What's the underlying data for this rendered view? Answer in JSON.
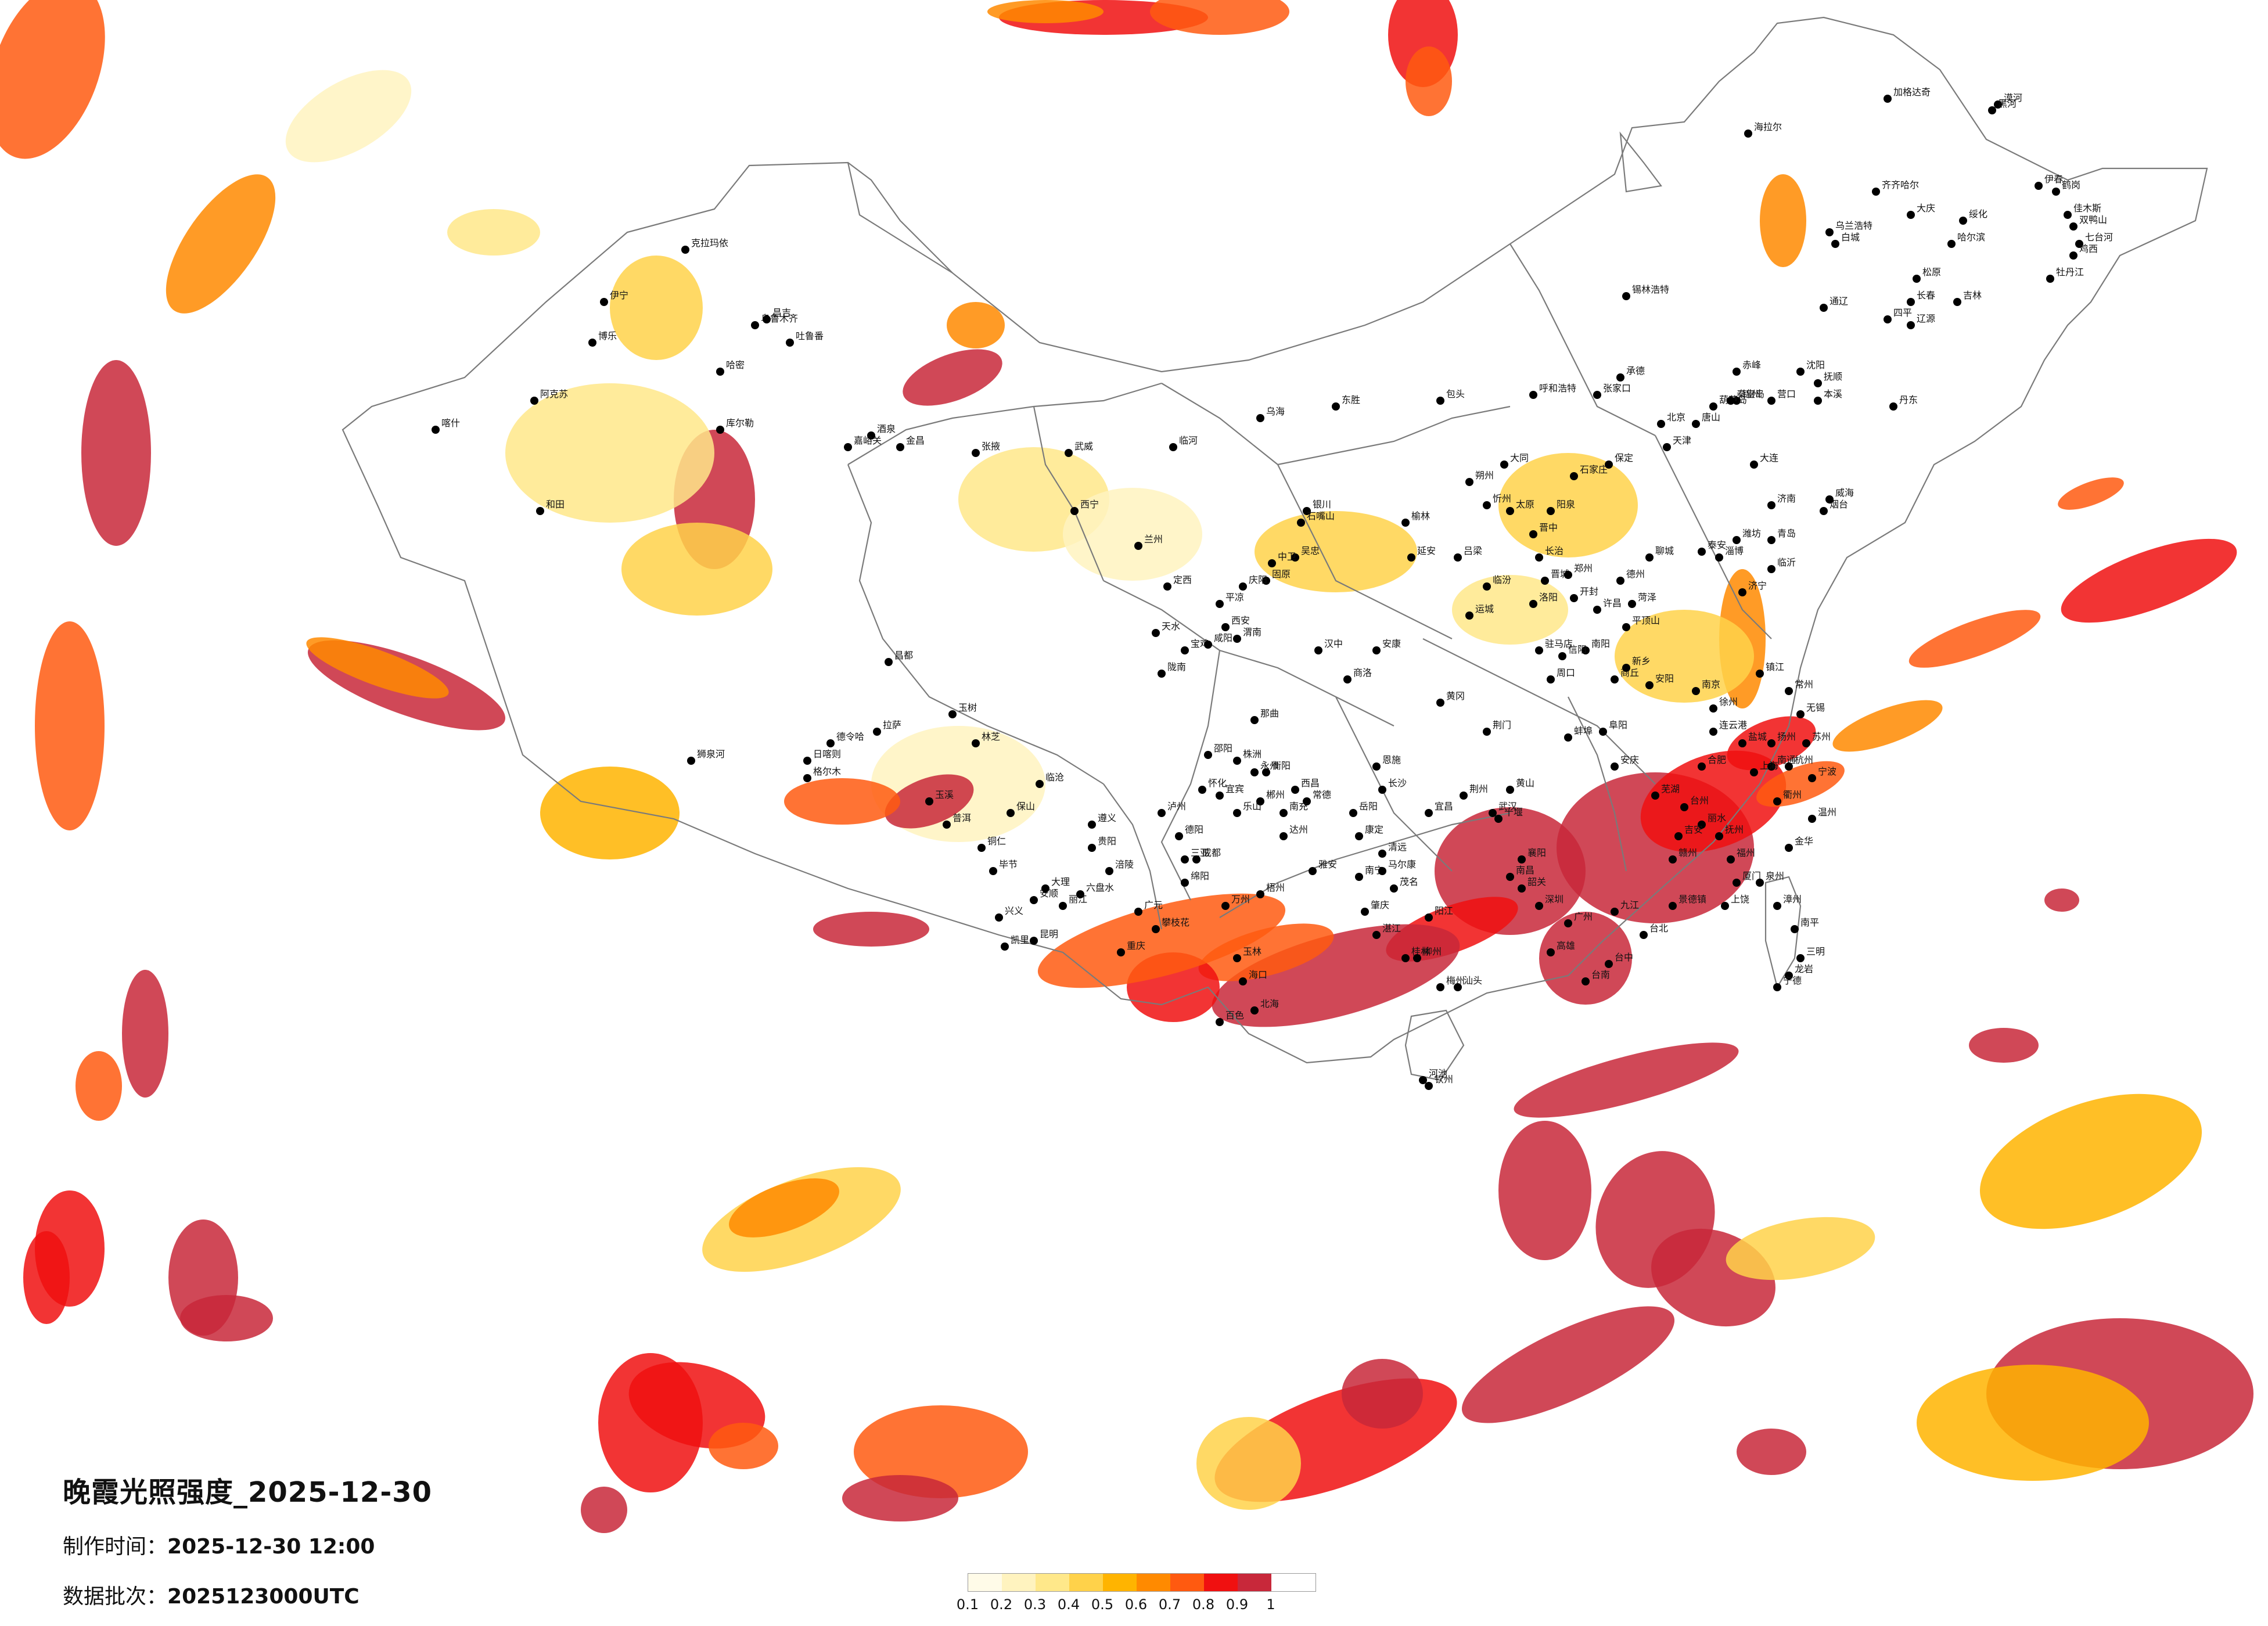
{
  "title": "晚霞光照强度_2025-12-30",
  "made_time_label": "制作时间：",
  "made_time_value": "2025-12-30 12:00",
  "batch_label": "数据批次：",
  "batch_value": "2025123000UTC",
  "legend": {
    "colors": [
      "#fffbe8",
      "#fff3bf",
      "#ffe88a",
      "#ffd24a",
      "#ffb400",
      "#ff8a00",
      "#ff5a10",
      "#f01010",
      "#c8283a"
    ],
    "ticks": [
      "0.1",
      "0.2",
      "0.3",
      "0.4",
      "0.5",
      "0.6",
      "0.7",
      "0.8",
      "0.9",
      "1"
    ]
  },
  "cities": [
    {
      "name": "漠河"
    },
    {
      "name": "加格达奇"
    },
    {
      "name": "海拉尔"
    },
    {
      "name": "黑河"
    },
    {
      "name": "伊春"
    },
    {
      "name": "齐齐哈尔"
    },
    {
      "name": "大庆"
    },
    {
      "name": "绥化"
    },
    {
      "name": "哈尔滨"
    },
    {
      "name": "鹤岗"
    },
    {
      "name": "佳木斯"
    },
    {
      "name": "双鸭山"
    },
    {
      "name": "七台河"
    },
    {
      "name": "鸡西"
    },
    {
      "name": "牡丹江"
    },
    {
      "name": "乌兰浩特"
    },
    {
      "name": "白城"
    },
    {
      "name": "松原"
    },
    {
      "name": "长春"
    },
    {
      "name": "吉林"
    },
    {
      "name": "四平"
    },
    {
      "name": "辽源"
    },
    {
      "name": "通辽"
    },
    {
      "name": "锡林浩特"
    },
    {
      "name": "赤峰"
    },
    {
      "name": "沈阳"
    },
    {
      "name": "抚顺"
    },
    {
      "name": "本溪"
    },
    {
      "name": "丹东"
    },
    {
      "name": "大连"
    },
    {
      "name": "营口"
    },
    {
      "name": "锦州"
    },
    {
      "name": "葫芦岛"
    },
    {
      "name": "承德"
    },
    {
      "name": "张家口"
    },
    {
      "name": "呼和浩特"
    },
    {
      "name": "包头"
    },
    {
      "name": "东胜"
    },
    {
      "name": "乌海"
    },
    {
      "name": "临河"
    },
    {
      "name": "北京"
    },
    {
      "name": "天津"
    },
    {
      "name": "唐山"
    },
    {
      "name": "秦皇岛"
    },
    {
      "name": "保定"
    },
    {
      "name": "石家庄"
    },
    {
      "name": "大同"
    },
    {
      "name": "朔州"
    },
    {
      "name": "忻州"
    },
    {
      "name": "太原"
    },
    {
      "name": "阳泉"
    },
    {
      "name": "晋中"
    },
    {
      "name": "长治"
    },
    {
      "name": "晋城"
    },
    {
      "name": "临汾"
    },
    {
      "name": "运城"
    },
    {
      "name": "吕梁"
    },
    {
      "name": "榆林"
    },
    {
      "name": "延安"
    },
    {
      "name": "银川"
    },
    {
      "name": "石嘴山"
    },
    {
      "name": "吴忠"
    },
    {
      "name": "中卫"
    },
    {
      "name": "固原"
    },
    {
      "name": "西安"
    },
    {
      "name": "宝鸡"
    },
    {
      "name": "咸阳"
    },
    {
      "name": "渭南"
    },
    {
      "name": "汉中"
    },
    {
      "name": "安康"
    },
    {
      "name": "商洛"
    },
    {
      "name": "兰州"
    },
    {
      "name": "西宁"
    },
    {
      "name": "天水"
    },
    {
      "name": "平凉"
    },
    {
      "name": "庆阳"
    },
    {
      "name": "定西"
    },
    {
      "name": "陇南"
    },
    {
      "name": "武威"
    },
    {
      "name": "张掖"
    },
    {
      "name": "酒泉"
    },
    {
      "name": "嘉峪关"
    },
    {
      "name": "金昌"
    },
    {
      "name": "格尔木"
    },
    {
      "name": "德令哈"
    },
    {
      "name": "玉树"
    },
    {
      "name": "乌鲁木齐"
    },
    {
      "name": "昌吉"
    },
    {
      "name": "克拉玛依"
    },
    {
      "name": "伊宁"
    },
    {
      "name": "博乐"
    },
    {
      "name": "吐鲁番"
    },
    {
      "name": "哈密"
    },
    {
      "name": "库尔勒"
    },
    {
      "name": "阿克苏"
    },
    {
      "name": "喀什"
    },
    {
      "name": "和田"
    },
    {
      "name": "拉萨"
    },
    {
      "name": "日喀则"
    },
    {
      "name": "林芝"
    },
    {
      "name": "那曲"
    },
    {
      "name": "昌都"
    },
    {
      "name": "狮泉河"
    },
    {
      "name": "济南"
    },
    {
      "name": "青岛"
    },
    {
      "name": "烟台"
    },
    {
      "name": "威海"
    },
    {
      "name": "潍坊"
    },
    {
      "name": "淄博"
    },
    {
      "name": "临沂"
    },
    {
      "name": "济宁"
    },
    {
      "name": "泰安"
    },
    {
      "name": "聊城"
    },
    {
      "name": "德州"
    },
    {
      "name": "菏泽"
    },
    {
      "name": "郑州"
    },
    {
      "name": "开封"
    },
    {
      "name": "洛阳"
    },
    {
      "name": "许昌"
    },
    {
      "name": "平顶山"
    },
    {
      "name": "南阳"
    },
    {
      "name": "信阳"
    },
    {
      "name": "驻马店"
    },
    {
      "name": "周口"
    },
    {
      "name": "商丘"
    },
    {
      "name": "新乡"
    },
    {
      "name": "安阳"
    },
    {
      "name": "南京"
    },
    {
      "name": "徐州"
    },
    {
      "name": "连云港"
    },
    {
      "name": "盐城"
    },
    {
      "name": "扬州"
    },
    {
      "name": "镇江"
    },
    {
      "name": "常州"
    },
    {
      "name": "无锡"
    },
    {
      "name": "苏州"
    },
    {
      "name": "南通"
    },
    {
      "name": "上海"
    },
    {
      "name": "杭州"
    },
    {
      "name": "宁波"
    },
    {
      "name": "温州"
    },
    {
      "name": "金华"
    },
    {
      "name": "衢州"
    },
    {
      "name": "丽水"
    },
    {
      "name": "台州"
    },
    {
      "name": "合肥"
    },
    {
      "name": "芜湖"
    },
    {
      "name": "安庆"
    },
    {
      "name": "阜阳"
    },
    {
      "name": "蚌埠"
    },
    {
      "name": "黄山"
    },
    {
      "name": "武汉"
    },
    {
      "name": "宜昌"
    },
    {
      "name": "襄阳"
    },
    {
      "name": "十堰"
    },
    {
      "name": "荆州"
    },
    {
      "name": "荆门"
    },
    {
      "name": "黄冈"
    },
    {
      "name": "恩施"
    },
    {
      "name": "长沙"
    },
    {
      "name": "岳阳"
    },
    {
      "name": "常德"
    },
    {
      "name": "衡阳"
    },
    {
      "name": "株洲"
    },
    {
      "name": "邵阳"
    },
    {
      "name": "怀化"
    },
    {
      "name": "郴州"
    },
    {
      "name": "永州"
    },
    {
      "name": "南昌"
    },
    {
      "name": "九江"
    },
    {
      "name": "景德镇"
    },
    {
      "name": "上饶"
    },
    {
      "name": "赣州"
    },
    {
      "name": "吉安"
    },
    {
      "name": "抚州"
    },
    {
      "name": "福州"
    },
    {
      "name": "厦门"
    },
    {
      "name": "泉州"
    },
    {
      "name": "漳州"
    },
    {
      "name": "南平"
    },
    {
      "name": "三明"
    },
    {
      "name": "龙岩"
    },
    {
      "name": "宁德"
    },
    {
      "name": "台北"
    },
    {
      "name": "台中"
    },
    {
      "name": "台南"
    },
    {
      "name": "高雄"
    },
    {
      "name": "广州"
    },
    {
      "name": "深圳"
    },
    {
      "name": "韶关"
    },
    {
      "name": "汕头"
    },
    {
      "name": "梅州"
    },
    {
      "name": "湛江"
    },
    {
      "name": "茂名"
    },
    {
      "name": "阳江"
    },
    {
      "name": "肇庆"
    },
    {
      "name": "清远"
    },
    {
      "name": "南宁"
    },
    {
      "name": "桂林"
    },
    {
      "name": "柳州"
    },
    {
      "name": "梧州"
    },
    {
      "name": "玉林"
    },
    {
      "name": "百色"
    },
    {
      "name": "河池"
    },
    {
      "name": "钦州"
    },
    {
      "name": "北海"
    },
    {
      "name": "海口"
    },
    {
      "name": "三亚"
    },
    {
      "name": "成都"
    },
    {
      "name": "绵阳"
    },
    {
      "name": "德阳"
    },
    {
      "name": "乐山"
    },
    {
      "name": "宜宾"
    },
    {
      "name": "泸州"
    },
    {
      "name": "南充"
    },
    {
      "name": "达州"
    },
    {
      "name": "西昌"
    },
    {
      "name": "康定"
    },
    {
      "name": "马尔康"
    },
    {
      "name": "雅安"
    },
    {
      "name": "广元"
    },
    {
      "name": "攀枝花"
    },
    {
      "name": "重庆"
    },
    {
      "name": "万州"
    },
    {
      "name": "涪陵"
    },
    {
      "name": "贵阳"
    },
    {
      "name": "遵义"
    },
    {
      "name": "六盘水"
    },
    {
      "name": "安顺"
    },
    {
      "name": "毕节"
    },
    {
      "name": "铜仁"
    },
    {
      "name": "兴义"
    },
    {
      "name": "凯里"
    },
    {
      "name": "昆明"
    },
    {
      "name": "大理"
    },
    {
      "name": "丽江"
    },
    {
      "name": "保山"
    },
    {
      "name": "临沧"
    },
    {
      "name": "普洱"
    },
    {
      "name": "玉溪"
    },
    {
      "name": "曲靖"
    },
    {
      "name": "昭通"
    },
    {
      "name": "蒙自"
    },
    {
      "name": "景洪"
    },
    {
      "name": "楚雄"
    }
  ]
}
